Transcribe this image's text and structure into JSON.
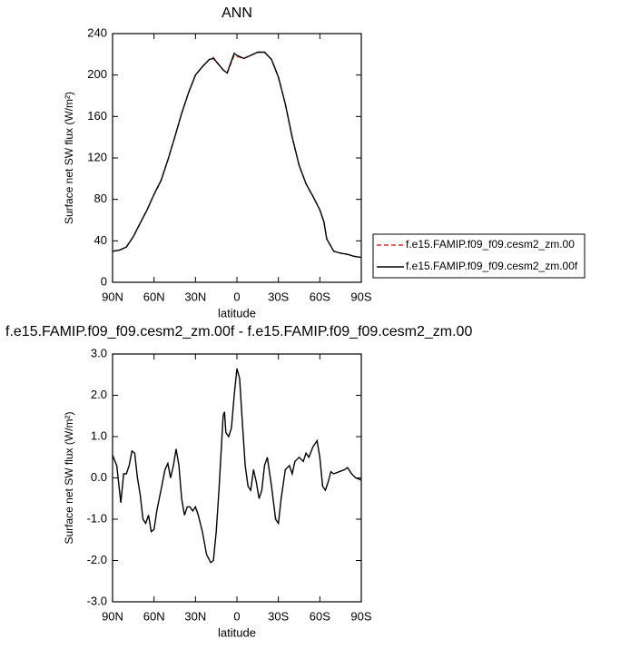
{
  "chart_data": [
    {
      "type": "line",
      "title": "ANN",
      "x_label": "latitude",
      "y_label": "Surface net SW flux (W/m²)",
      "x": [
        90,
        85,
        80,
        75,
        70,
        65,
        60,
        55,
        50,
        45,
        40,
        35,
        30,
        25,
        20,
        17,
        15,
        10,
        7,
        5,
        2,
        0,
        -5,
        -10,
        -15,
        -20,
        -25,
        -30,
        -35,
        -40,
        -45,
        -50,
        -55,
        -60,
        -63,
        -65,
        -70,
        -75,
        -80,
        -85,
        -90
      ],
      "series": [
        {
          "name": "f.e15.FAMIP.f09_f09.cesm2_zm.00",
          "color": "#e8282b",
          "line_style": "dashed",
          "values": [
            30,
            31,
            34,
            44,
            57,
            70,
            85,
            98,
            118,
            140,
            163,
            183,
            200,
            208,
            215,
            217,
            213,
            205,
            202,
            209,
            219,
            218,
            216,
            219,
            222,
            222,
            215,
            198,
            172,
            140,
            113,
            95,
            83,
            70,
            58,
            42,
            30,
            28,
            27,
            25,
            24
          ]
        },
        {
          "name": "f.e15.FAMIP.f09_f09.cesm2_zm.00f",
          "color": "#000000",
          "line_style": "solid",
          "values": [
            30,
            31,
            34,
            44,
            57,
            70,
            85,
            98,
            118,
            140,
            163,
            183,
            200,
            208,
            215,
            216,
            213,
            205,
            202,
            210,
            221,
            219,
            216,
            219,
            222,
            222,
            215,
            198,
            172,
            140,
            113,
            95,
            83,
            70,
            58,
            42,
            30,
            28,
            27,
            25,
            24
          ]
        }
      ],
      "xlim": [
        90,
        -90
      ],
      "xticks": [
        {
          "value": 90,
          "label": "90N"
        },
        {
          "value": 60,
          "label": "60N"
        },
        {
          "value": 30,
          "label": "30N"
        },
        0,
        {
          "value": -30,
          "label": "30S"
        },
        {
          "value": -60,
          "label": "60S"
        },
        {
          "value": -90,
          "label": "90S"
        }
      ],
      "ylim": [
        0,
        240
      ],
      "yticks": [
        0,
        40,
        80,
        120,
        160,
        200,
        240
      ],
      "legend": "right"
    },
    {
      "type": "line",
      "title": "f.e15.FAMIP.f09_f09.cesm2_zm.00f - f.e15.FAMIP.f09_f09.cesm2_zm.00",
      "x_label": "latitude",
      "y_label": "Surface net SW flux (W/m²)",
      "x": [
        90,
        87,
        84,
        82,
        80,
        78,
        76,
        74,
        72,
        70,
        68,
        66,
        64,
        62,
        60,
        58,
        55,
        52,
        50,
        48,
        46,
        44,
        42,
        40,
        38,
        36,
        34,
        32,
        30,
        28,
        25,
        22,
        19,
        17,
        15,
        13,
        10,
        9,
        8,
        6,
        4,
        2,
        0,
        -2,
        -4,
        -6,
        -8,
        -10,
        -12,
        -14,
        -16,
        -18,
        -20,
        -22,
        -25,
        -28,
        -30,
        -32,
        -35,
        -38,
        -40,
        -42,
        -45,
        -48,
        -50,
        -52,
        -55,
        -58,
        -60,
        -62,
        -64,
        -66,
        -68,
        -70,
        -74,
        -78,
        -80,
        -83,
        -86,
        -90
      ],
      "series": [
        {
          "color": "#000000",
          "line_style": "solid",
          "values": [
            0.55,
            0.3,
            -0.6,
            0.1,
            0.1,
            0.3,
            0.65,
            0.6,
            0.0,
            -0.4,
            -1.0,
            -1.1,
            -0.9,
            -1.3,
            -1.25,
            -0.8,
            -0.3,
            0.2,
            0.35,
            0.0,
            0.3,
            0.7,
            0.3,
            -0.5,
            -0.9,
            -0.7,
            -0.7,
            -0.8,
            -0.7,
            -0.9,
            -1.3,
            -1.85,
            -2.05,
            -2.0,
            -1.3,
            -0.3,
            1.5,
            1.6,
            1.1,
            1.0,
            1.2,
            2.0,
            2.65,
            2.4,
            1.3,
            0.3,
            -0.2,
            -0.3,
            0.2,
            -0.1,
            -0.5,
            -0.3,
            0.3,
            0.5,
            -0.2,
            -1.0,
            -1.1,
            -0.5,
            0.2,
            0.3,
            0.1,
            0.4,
            0.5,
            0.4,
            0.6,
            0.5,
            0.75,
            0.9,
            0.5,
            -0.2,
            -0.3,
            -0.1,
            0.15,
            0.1,
            0.15,
            0.2,
            0.25,
            0.1,
            0.0,
            -0.05
          ]
        }
      ],
      "xlim": [
        90,
        -90
      ],
      "xticks": [
        {
          "value": 90,
          "label": "90N"
        },
        {
          "value": 60,
          "label": "60N"
        },
        {
          "value": 30,
          "label": "30N"
        },
        0,
        {
          "value": -30,
          "label": "30S"
        },
        {
          "value": -60,
          "label": "60S"
        },
        {
          "value": -90,
          "label": "90S"
        }
      ],
      "ylim": [
        -3,
        3
      ],
      "yticks": [
        {
          "value": -3,
          "label": "-3.0"
        },
        {
          "value": -2,
          "label": "-2.0"
        },
        {
          "value": -1,
          "label": "-1.0"
        },
        {
          "value": 0,
          "label": "0.0"
        },
        {
          "value": 1,
          "label": "1.0"
        },
        {
          "value": 2,
          "label": "2.0"
        },
        {
          "value": 3,
          "label": "3.0"
        }
      ]
    }
  ]
}
